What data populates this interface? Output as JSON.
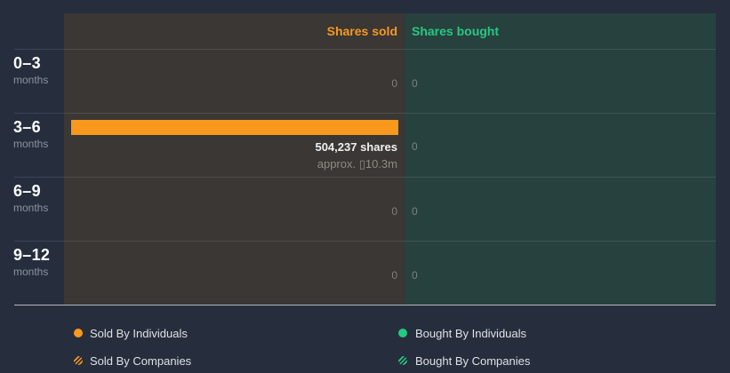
{
  "header": {
    "sold_label": "Shares sold",
    "bought_label": "Shares bought"
  },
  "rows": [
    {
      "period": "0–3",
      "unit": "months",
      "sold": "0",
      "bought": "0"
    },
    {
      "period": "3–6",
      "unit": "months",
      "sold_shares": "504,237 shares",
      "sold_approx": "approx. ▯10.3m",
      "bought": "0"
    },
    {
      "period": "6–9",
      "unit": "months",
      "sold": "0",
      "bought": "0"
    },
    {
      "period": "9–12",
      "unit": "months",
      "sold": "0",
      "bought": "0"
    }
  ],
  "legend": {
    "sold_individuals": "Sold By Individuals",
    "sold_companies": "Sold By Companies",
    "bought_individuals": "Bought By Individuals",
    "bought_companies": "Bought By Companies"
  },
  "chart_data": {
    "type": "bar",
    "orientation": "horizontal",
    "categories": [
      "0–3 months",
      "3–6 months",
      "6–9 months",
      "9–12 months"
    ],
    "series": [
      {
        "name": "Shares sold",
        "values": [
          0,
          504237,
          0,
          0
        ]
      },
      {
        "name": "Shares bought",
        "values": [
          0,
          0,
          0,
          0
        ]
      }
    ],
    "annotations": [
      "504,237 shares",
      "approx. ▯10.3m"
    ],
    "legend_position": "bottom",
    "grid": "row-dividers",
    "colors": {
      "sold_accent": "#f8981d",
      "bought_accent": "#26c981",
      "sold_panel": "#3a3734",
      "bought_panel": "#27413f",
      "background": "#262e3d"
    }
  }
}
